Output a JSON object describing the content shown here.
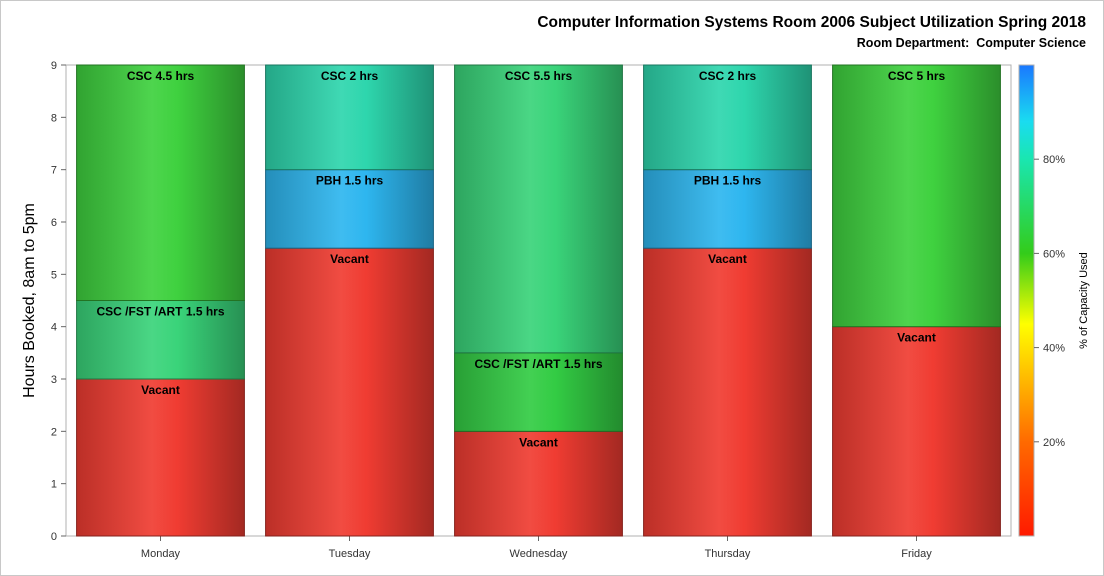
{
  "header": {
    "title": "Computer Information Systems Room 2006 Subject Utilization Spring 2018",
    "subtitle": "Room Department:  Computer Science"
  },
  "colorbar": {
    "label": "% of Capacity Used",
    "ticks": [
      "20%",
      "40%",
      "60%",
      "80%"
    ],
    "tick_values": [
      20,
      40,
      60,
      80
    ],
    "range": [
      0,
      100
    ],
    "stops": [
      {
        "pct": 0,
        "color": "#ff1a00"
      },
      {
        "pct": 20,
        "color": "#ff6a00"
      },
      {
        "pct": 45,
        "color": "#ffff00"
      },
      {
        "pct": 60,
        "color": "#33cc1a"
      },
      {
        "pct": 80,
        "color": "#1ae6b0"
      },
      {
        "pct": 88,
        "color": "#1adcf0"
      },
      {
        "pct": 100,
        "color": "#1a78ff"
      }
    ]
  },
  "chart_data": {
    "type": "bar",
    "stacked": true,
    "categories": [
      "Monday",
      "Tuesday",
      "Wednesday",
      "Thursday",
      "Friday"
    ],
    "ylabel": "Hours Booked, 8am to 5pm",
    "ylim": [
      0,
      9
    ],
    "yticks": [
      "0",
      "1",
      "2",
      "3",
      "4",
      "5",
      "6",
      "7",
      "8",
      "9"
    ],
    "segments": [
      [
        {
          "label": "Vacant",
          "value": 3,
          "color": "#f03c32"
        },
        {
          "label": "CSC /FST /ART 1.5 hrs",
          "value": 1.5,
          "color": "#3ad47a"
        },
        {
          "label": "CSC 4.5 hrs",
          "value": 4.5,
          "color": "#3fd13f"
        }
      ],
      [
        {
          "label": "Vacant",
          "value": 5.5,
          "color": "#f03c32"
        },
        {
          "label": "PBH 1.5 hrs",
          "value": 1.5,
          "color": "#2eb6ef"
        },
        {
          "label": "CSC 2 hrs",
          "value": 2,
          "color": "#2ed6ad"
        }
      ],
      [
        {
          "label": "Vacant",
          "value": 2,
          "color": "#f03c32"
        },
        {
          "label": "CSC /FST /ART 1.5 hrs",
          "value": 1.5,
          "color": "#33cc44"
        },
        {
          "label": "CSC 5.5 hrs",
          "value": 5.5,
          "color": "#3ad47a"
        }
      ],
      [
        {
          "label": "Vacant",
          "value": 5.5,
          "color": "#f03c32"
        },
        {
          "label": "PBH 1.5 hrs",
          "value": 1.5,
          "color": "#2eb6ef"
        },
        {
          "label": "CSC 2 hrs",
          "value": 2,
          "color": "#2ed6ad"
        }
      ],
      [
        {
          "label": "Vacant",
          "value": 4,
          "color": "#f03c32"
        },
        {
          "label": "CSC 5 hrs",
          "value": 5,
          "color": "#3fd13f"
        }
      ]
    ]
  }
}
